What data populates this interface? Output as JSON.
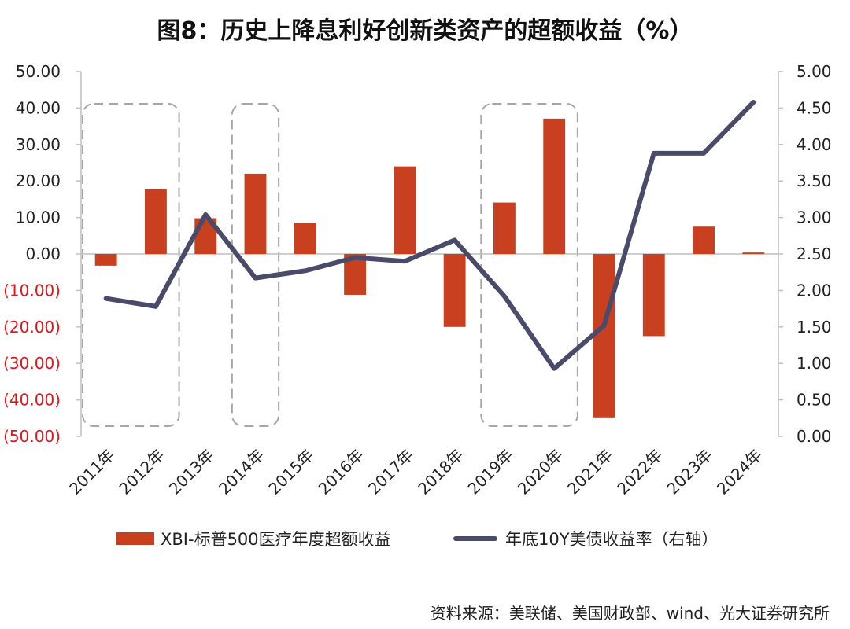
{
  "title": "图8：历史上降息利好创新类资产的超额收益（%）",
  "source": "资料来源：美联储、美国财政部、wind、光大证券研究所",
  "colors": {
    "bar": "#C8401F",
    "line": "#4A4A6A",
    "negative_tick": "#E0161C",
    "positive_tick": "#222222",
    "axis": "#BFBFBF",
    "highlight_box": "#A6A6A6"
  },
  "chart_data": {
    "type": "bar+line",
    "categories": [
      "2011年",
      "2012年",
      "2013年",
      "2014年",
      "2015年",
      "2016年",
      "2017年",
      "2018年",
      "2019年",
      "2020年",
      "2021年",
      "2022年",
      "2023年",
      "2024年"
    ],
    "series": [
      {
        "name": "XBI-标普500医疗年度超额收益",
        "type": "bar",
        "axis": "left",
        "values": [
          -3.2,
          17.8,
          9.8,
          22.0,
          8.6,
          -11.2,
          24.0,
          -20.0,
          14.1,
          37.1,
          -45.0,
          -22.5,
          7.5,
          0.4
        ]
      },
      {
        "name": "年底10Y美债收益率（右轴）",
        "type": "line",
        "axis": "right",
        "values": [
          1.89,
          1.78,
          3.04,
          2.17,
          2.27,
          2.45,
          2.4,
          2.69,
          1.92,
          0.93,
          1.52,
          3.88,
          3.88,
          4.58
        ]
      }
    ],
    "y_left": {
      "min": -50,
      "max": 50,
      "step": 10,
      "tick_labels": [
        "50.00",
        "40.00",
        "30.00",
        "20.00",
        "10.00",
        "0.00",
        "(10.00)",
        "(20.00)",
        "(30.00)",
        "(40.00)",
        "(50.00)"
      ]
    },
    "y_right": {
      "min": 0,
      "max": 5,
      "step": 0.5,
      "tick_labels": [
        "5.00",
        "4.50",
        "4.00",
        "3.50",
        "3.00",
        "2.50",
        "2.00",
        "1.50",
        "1.00",
        "0.50",
        "0.00"
      ]
    },
    "highlight_periods": [
      {
        "from": "2011年",
        "to": "2012年"
      },
      {
        "from": "2014年",
        "to": "2014年"
      },
      {
        "from": "2019年",
        "to": "2020年"
      }
    ],
    "legend_position": "bottom"
  }
}
